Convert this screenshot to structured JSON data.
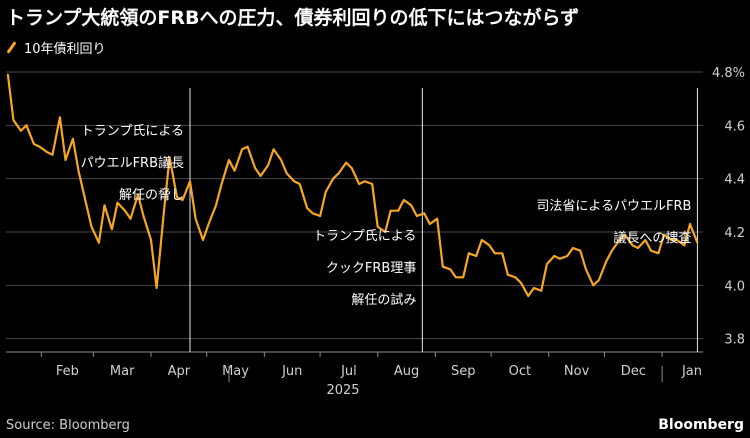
{
  "title": "トランプ大統領のFRBへの圧力、債券利回りの低下にはつながらず",
  "legend": {
    "label": "10年債利回り",
    "color": "#f5a623"
  },
  "source": "Source: Bloomberg",
  "brand": "Bloomberg",
  "chart_data": {
    "type": "line",
    "title": "トランプ大統領のFRBへの圧力、債券利回りの低下にはつながらず",
    "xlabel": "2025",
    "ylabel": "",
    "ylim": [
      3.75,
      4.8
    ],
    "y_ticks": [
      3.8,
      4.0,
      4.2,
      4.4,
      4.6,
      4.8
    ],
    "y_tick_labels": [
      "3.8",
      "4.0",
      "4.2",
      "4.4",
      "4.6",
      "4.8%"
    ],
    "x_ticks": [
      "2025-02-01",
      "2025-03-01",
      "2025-04-01",
      "2025-05-01",
      "2025-06-01",
      "2025-07-01",
      "2025-08-01",
      "2025-09-01",
      "2025-10-01",
      "2025-11-01",
      "2025-12-01",
      "2026-01-01"
    ],
    "x_tick_labels": [
      "Feb",
      "Mar",
      "Apr",
      "May",
      "Jun",
      "Jul",
      "Aug",
      "Sep",
      "Oct",
      "Nov",
      "Dec",
      "Jan"
    ],
    "xlim": [
      "2025-01-13",
      "2026-01-23"
    ],
    "grid": true,
    "series": [
      {
        "name": "10年債利回り",
        "color": "#f5a623",
        "x": [
          "2025-01-14",
          "2025-01-17",
          "2025-01-21",
          "2025-01-24",
          "2025-01-28",
          "2025-01-31",
          "2025-02-04",
          "2025-02-07",
          "2025-02-11",
          "2025-02-14",
          "2025-02-18",
          "2025-02-21",
          "2025-02-25",
          "2025-02-28",
          "2025-03-04",
          "2025-03-07",
          "2025-03-11",
          "2025-03-14",
          "2025-03-18",
          "2025-03-21",
          "2025-03-25",
          "2025-03-28",
          "2025-04-01",
          "2025-04-04",
          "2025-04-08",
          "2025-04-11",
          "2025-04-15",
          "2025-04-18",
          "2025-04-22",
          "2025-04-25",
          "2025-04-29",
          "2025-05-02",
          "2025-05-06",
          "2025-05-09",
          "2025-05-13",
          "2025-05-16",
          "2025-05-20",
          "2025-05-23",
          "2025-05-27",
          "2025-05-30",
          "2025-06-03",
          "2025-06-06",
          "2025-06-10",
          "2025-06-13",
          "2025-06-17",
          "2025-06-20",
          "2025-06-24",
          "2025-06-27",
          "2025-07-01",
          "2025-07-04",
          "2025-07-08",
          "2025-07-11",
          "2025-07-15",
          "2025-07-18",
          "2025-07-22",
          "2025-07-25",
          "2025-07-29",
          "2025-08-01",
          "2025-08-05",
          "2025-08-08",
          "2025-08-12",
          "2025-08-15",
          "2025-08-19",
          "2025-08-22",
          "2025-08-26",
          "2025-08-29",
          "2025-09-02",
          "2025-09-05",
          "2025-09-09",
          "2025-09-12",
          "2025-09-16",
          "2025-09-19",
          "2025-09-23",
          "2025-09-26",
          "2025-09-30",
          "2025-10-03",
          "2025-10-07",
          "2025-10-10",
          "2025-10-14",
          "2025-10-17",
          "2025-10-21",
          "2025-10-24",
          "2025-10-28",
          "2025-10-31",
          "2025-11-04",
          "2025-11-07",
          "2025-11-11",
          "2025-11-14",
          "2025-11-18",
          "2025-11-21",
          "2025-11-25",
          "2025-11-28",
          "2025-12-02",
          "2025-12-05",
          "2025-12-09",
          "2025-12-12",
          "2025-12-16",
          "2025-12-19",
          "2025-12-23",
          "2025-12-26",
          "2025-12-30",
          "2026-01-02",
          "2026-01-06",
          "2026-01-09",
          "2026-01-13",
          "2026-01-16",
          "2026-01-20"
        ],
        "values": [
          4.79,
          4.62,
          4.58,
          4.6,
          4.53,
          4.52,
          4.5,
          4.49,
          4.63,
          4.47,
          4.55,
          4.43,
          4.31,
          4.22,
          4.16,
          4.3,
          4.21,
          4.31,
          4.28,
          4.25,
          4.34,
          4.26,
          4.17,
          3.99,
          4.28,
          4.48,
          4.33,
          4.32,
          4.39,
          4.25,
          4.17,
          4.23,
          4.3,
          4.38,
          4.47,
          4.43,
          4.51,
          4.52,
          4.44,
          4.41,
          4.45,
          4.51,
          4.47,
          4.42,
          4.39,
          4.38,
          4.29,
          4.27,
          4.26,
          4.35,
          4.4,
          4.42,
          4.46,
          4.44,
          4.38,
          4.39,
          4.38,
          4.22,
          4.2,
          4.28,
          4.28,
          4.32,
          4.3,
          4.26,
          4.27,
          4.23,
          4.25,
          4.07,
          4.06,
          4.03,
          4.03,
          4.12,
          4.11,
          4.17,
          4.15,
          4.12,
          4.12,
          4.04,
          4.03,
          4.01,
          3.96,
          3.99,
          3.98,
          4.08,
          4.11,
          4.1,
          4.11,
          4.14,
          4.13,
          4.06,
          4.0,
          4.02,
          4.09,
          4.13,
          4.17,
          4.19,
          4.15,
          4.14,
          4.17,
          4.13,
          4.12,
          4.19,
          4.17,
          4.17,
          4.15,
          4.23,
          4.16
        ]
      }
    ],
    "vlines": [
      "2025-04-22",
      "2025-08-25",
      "2026-01-20"
    ],
    "annotations": [
      {
        "lines": [
          "トランプ氏による",
          "パウエルFRB議長",
          "解任の脅し"
        ],
        "x": "2025-04-22"
      },
      {
        "lines": [
          "トランプ氏による",
          "クックFRB理事",
          "解任の試み"
        ],
        "x": "2025-08-25"
      },
      {
        "lines": [
          "司法省によるパウエルFRB",
          "議長への捜査"
        ],
        "x": "2026-01-20"
      }
    ]
  }
}
